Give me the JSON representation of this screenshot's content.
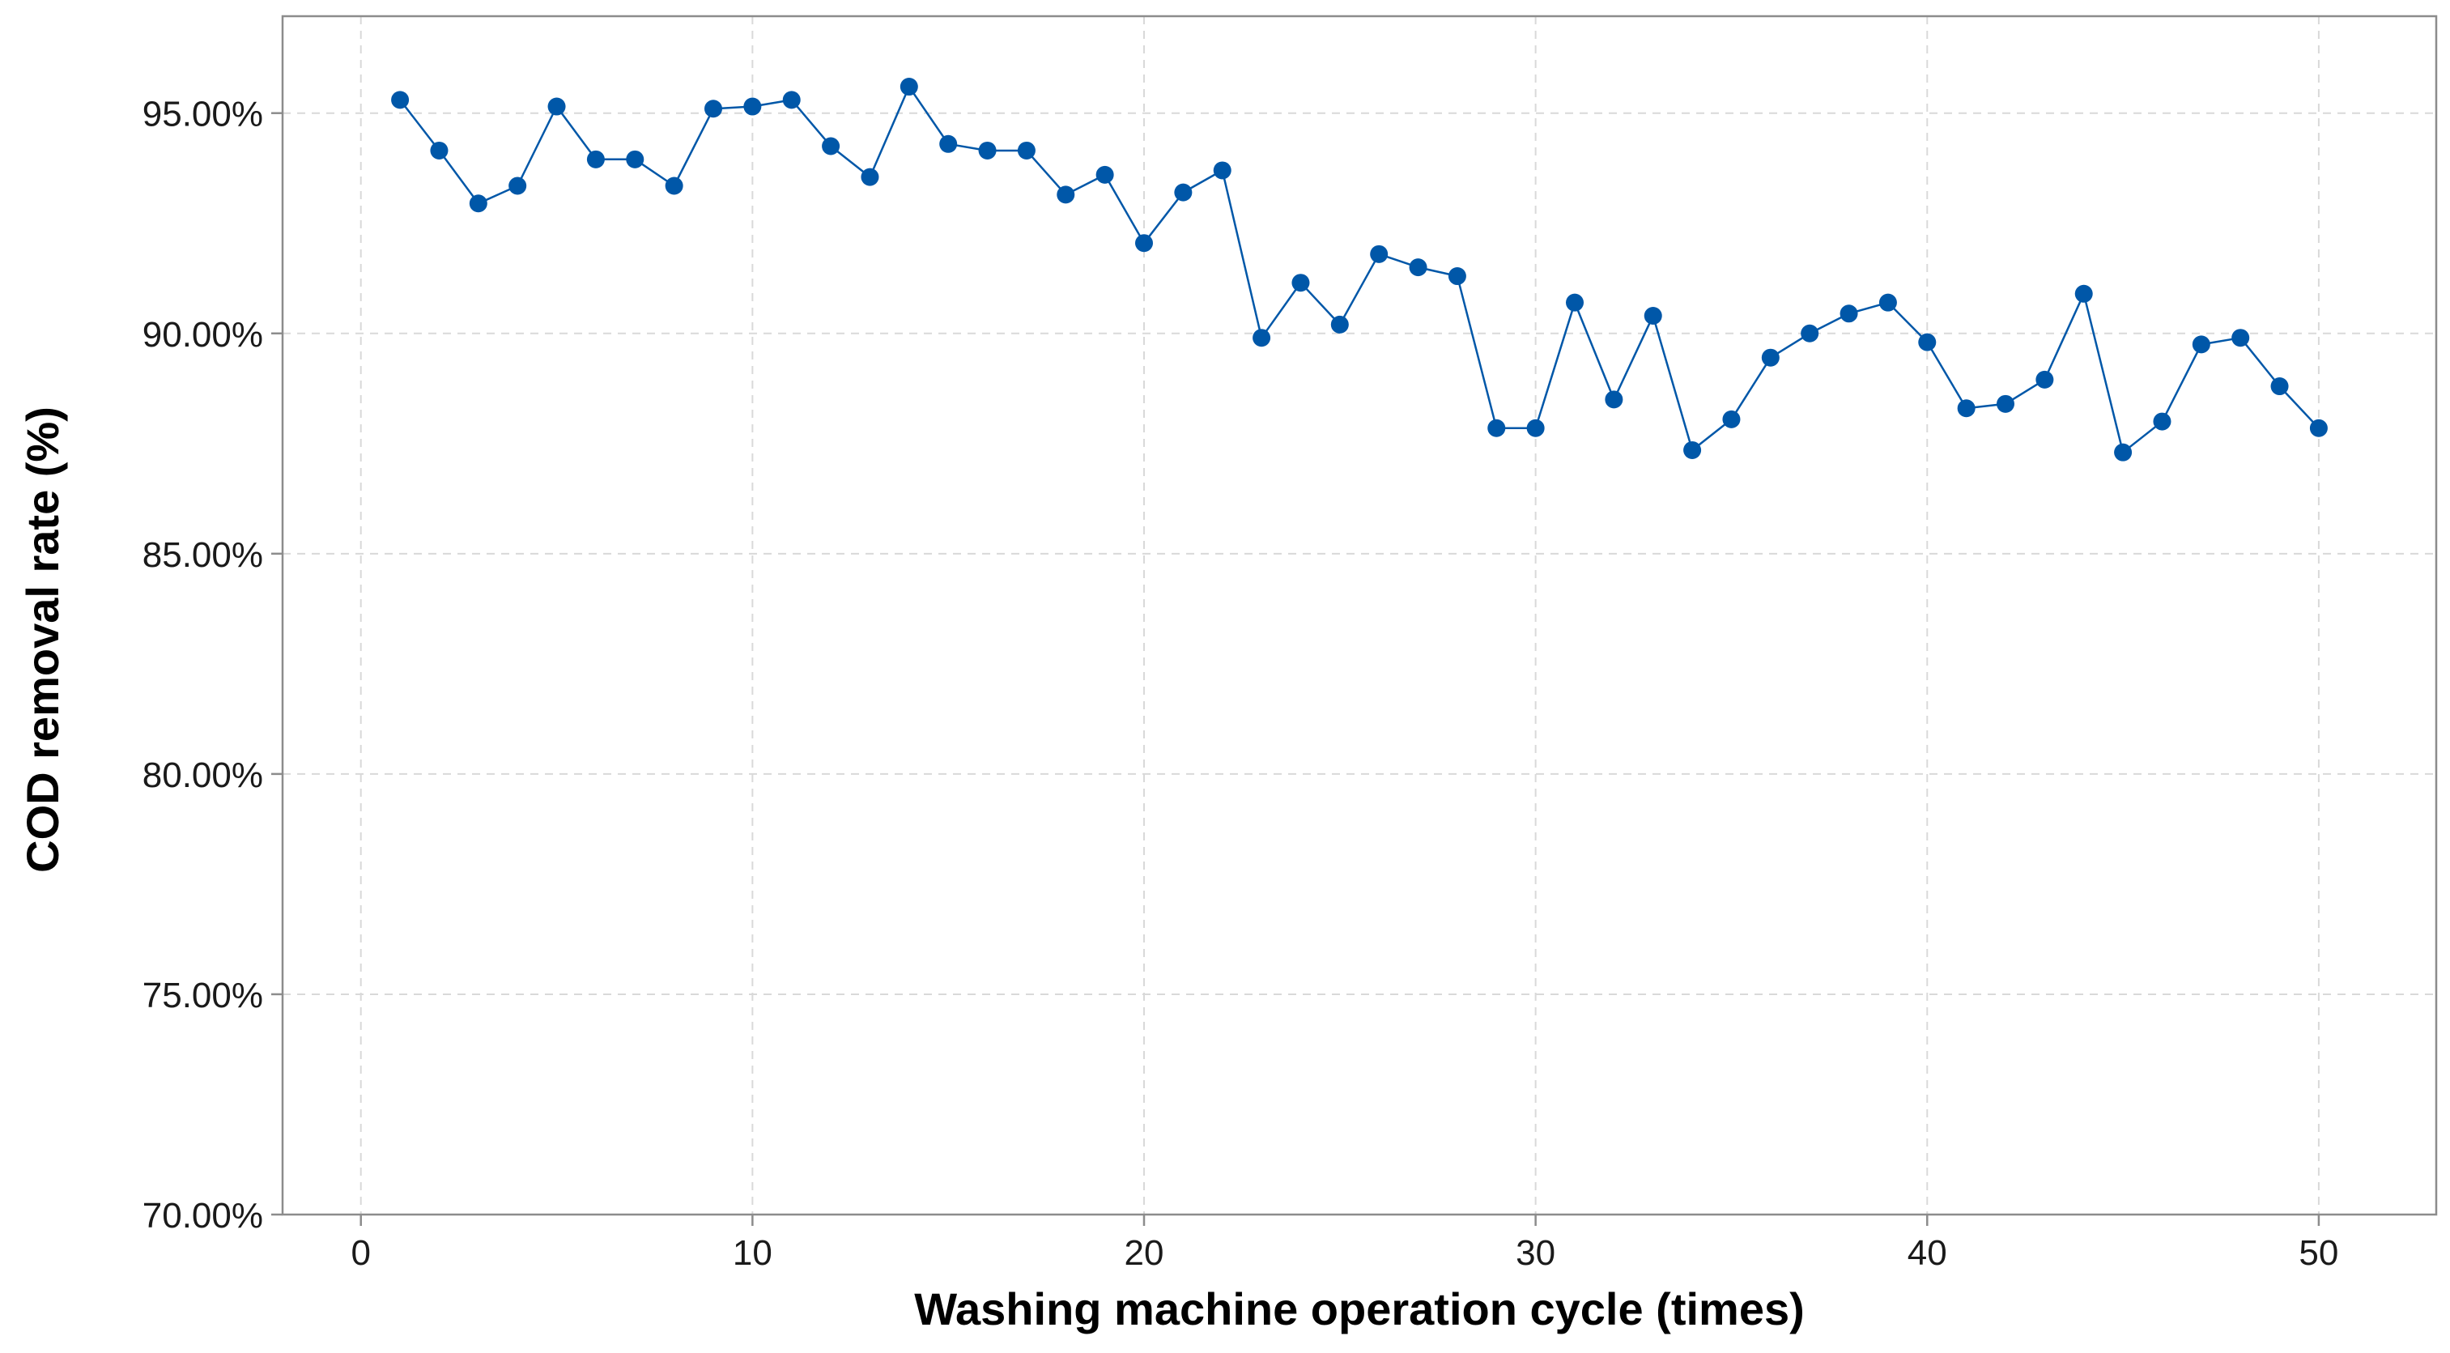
{
  "chart_data": {
    "type": "line",
    "title": "",
    "xlabel": "Washing machine operation cycle (times)",
    "ylabel": "COD removal rate (%)",
    "xlim": [
      -2,
      53
    ],
    "ylim": [
      70,
      97.2
    ],
    "x_ticks": [
      0,
      10,
      20,
      30,
      40,
      50
    ],
    "y_ticks": [
      70,
      75,
      80,
      85,
      90,
      95
    ],
    "x_tick_labels": [
      "0",
      "10",
      "20",
      "30",
      "40",
      "50"
    ],
    "y_tick_labels": [
      "70.00%",
      "75.00%",
      "80.00%",
      "85.00%",
      "90.00%",
      "95.00%"
    ],
    "grid": true,
    "legend": "none",
    "colors": {
      "series": "#0057A8",
      "grid": "#d9d9d9",
      "axis": "#8c8c8c"
    },
    "series": [
      {
        "marker": "circle",
        "x": [
          1,
          2,
          3,
          4,
          5,
          6,
          7,
          8,
          9,
          10,
          11,
          12,
          13,
          14,
          15,
          16,
          17,
          18,
          19,
          20,
          21,
          22,
          23,
          24,
          25,
          26,
          27,
          28,
          29,
          30,
          31,
          32,
          33,
          34,
          35,
          36,
          37,
          38,
          39,
          40,
          41,
          42,
          43,
          44,
          45,
          46,
          47,
          48,
          49,
          50
        ],
        "y": [
          95.3,
          94.15,
          92.95,
          93.35,
          95.15,
          93.95,
          93.95,
          93.35,
          95.1,
          95.15,
          95.3,
          94.25,
          93.55,
          95.6,
          94.3,
          94.15,
          94.15,
          93.15,
          93.6,
          92.05,
          93.2,
          93.7,
          89.9,
          91.15,
          90.2,
          91.8,
          91.5,
          91.3,
          87.85,
          87.85,
          90.7,
          88.5,
          90.4,
          87.35,
          88.05,
          89.45,
          90.0,
          90.45,
          90.7,
          89.8,
          88.3,
          88.4,
          88.95,
          90.9,
          87.3,
          88.0,
          89.75,
          89.9,
          88.8,
          87.85
        ]
      }
    ]
  }
}
